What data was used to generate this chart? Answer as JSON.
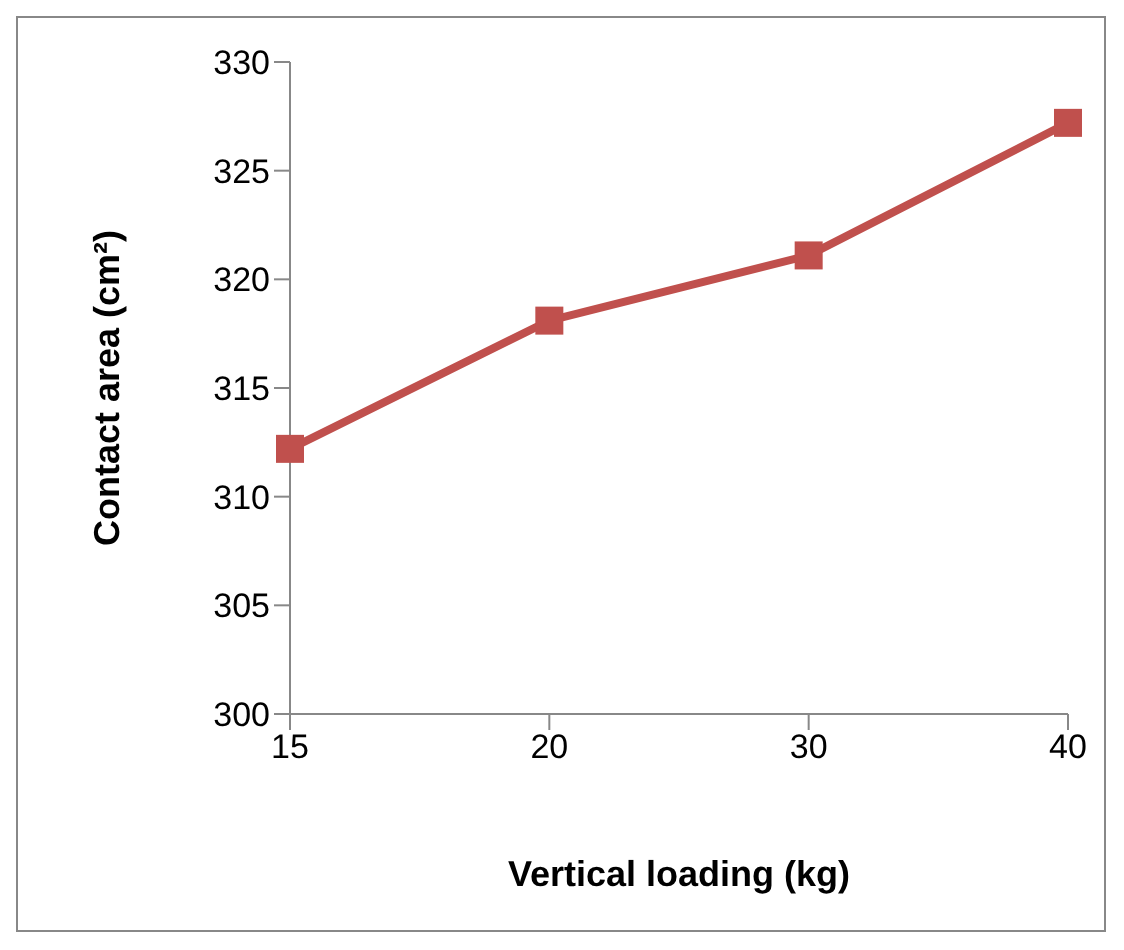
{
  "chart_data": {
    "type": "line",
    "xlabel": "Vertical loading (kg)",
    "ylabel": "Contact area (cm²)",
    "categories": [
      "15",
      "20",
      "30",
      "40"
    ],
    "series": [
      {
        "color": "#c0504d",
        "values": [
          312.2,
          318.1,
          321.1,
          327.2
        ]
      }
    ],
    "ylim": [
      300,
      330
    ],
    "yticks": [
      300,
      305,
      310,
      315,
      320,
      325,
      330
    ],
    "grid": false,
    "legend": false,
    "marker": "square",
    "line_style": "solid"
  }
}
